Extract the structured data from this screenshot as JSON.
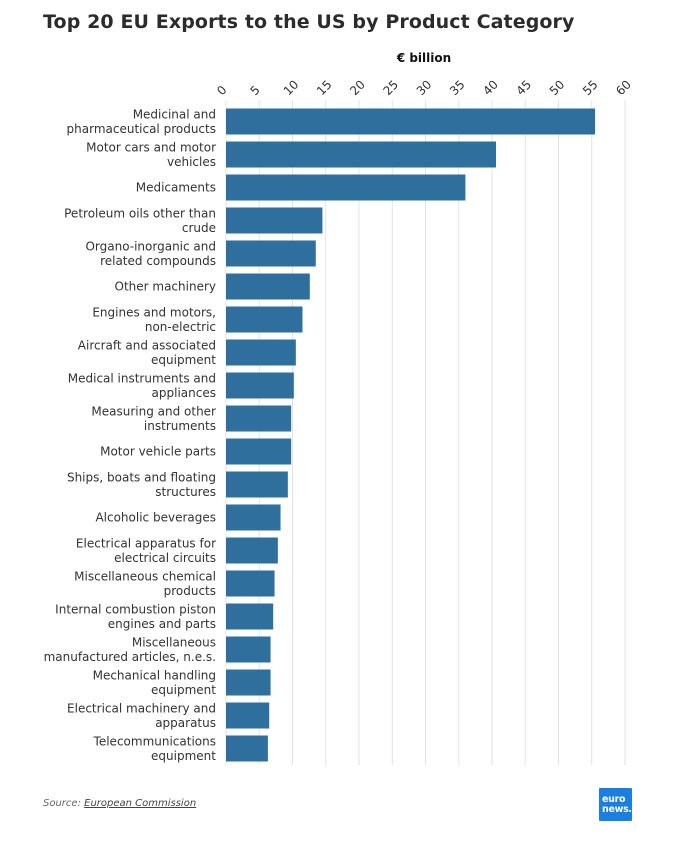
{
  "chart_data": {
    "type": "bar",
    "orientation": "horizontal",
    "title": "Top 20 EU Exports to the US by Product Category",
    "axis_title": "€ billion",
    "xlim": [
      0,
      60
    ],
    "x_ticks": [
      "0",
      "5",
      "10",
      "15",
      "20",
      "25",
      "30",
      "35",
      "40",
      "45",
      "50",
      "55",
      "60"
    ],
    "grid": true,
    "color": "#2e6f9e",
    "categories": [
      [
        "Medicinal and",
        "pharmaceutical products"
      ],
      [
        "Motor cars and motor",
        "vehicles"
      ],
      [
        "Medicaments"
      ],
      [
        "Petroleum oils other than",
        "crude"
      ],
      [
        "Organo-inorganic and",
        "related compounds"
      ],
      [
        "Other machinery"
      ],
      [
        "Engines and motors,",
        "non-electric"
      ],
      [
        "Aircraft and associated",
        "equipment"
      ],
      [
        "Medical instruments and",
        "appliances"
      ],
      [
        "Measuring and other",
        "instruments"
      ],
      [
        "Motor vehicle parts"
      ],
      [
        "Ships, boats and floating",
        "structures"
      ],
      [
        "Alcoholic beverages"
      ],
      [
        "Electrical apparatus for",
        "electrical circuits"
      ],
      [
        "Miscellaneous chemical",
        "products"
      ],
      [
        "Internal combustion piston",
        "engines and parts"
      ],
      [
        "Miscellaneous",
        "manufactured articles, n.e.s."
      ],
      [
        "Mechanical handling",
        "equipment"
      ],
      [
        "Electrical machinery and",
        "apparatus"
      ],
      [
        "Telecommunications",
        "equipment"
      ]
    ],
    "values": [
      55.5,
      40.6,
      36.0,
      14.5,
      13.5,
      12.6,
      11.5,
      10.5,
      10.2,
      9.8,
      9.8,
      9.3,
      8.2,
      7.8,
      7.3,
      7.1,
      6.7,
      6.7,
      6.5,
      6.3
    ]
  },
  "footer": {
    "source_prefix": "Source: ",
    "source_link": "European Commission",
    "logo_line1": "euro",
    "logo_line2": "news."
  }
}
